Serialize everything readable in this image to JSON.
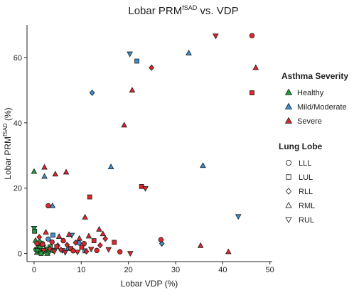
{
  "chart_data": {
    "type": "scatter",
    "title": "Lobar PRM",
    "title_super": "fSAD",
    "title_suffix": " vs. VDP",
    "xlabel": "Lobar VDP (%)",
    "ylabel": "Lobar PRM",
    "ylabel_super": "fSAD",
    "ylabel_suffix": " (%)",
    "xlim": [
      -1.5,
      50.5
    ],
    "ylim": [
      -2.5,
      70
    ],
    "xticks": [
      0,
      10,
      20,
      30,
      40,
      50
    ],
    "yticks": [
      0,
      20,
      40,
      60
    ],
    "grid": false,
    "legend_severity": {
      "title": "Asthma Severity",
      "items": [
        {
          "label": "Healthy",
          "color": "#1f9e3a"
        },
        {
          "label": "Mild/Moderate",
          "color": "#3a8fd0"
        },
        {
          "label": "Severe",
          "color": "#e0262b"
        }
      ]
    },
    "legend_lobe": {
      "title": "Lung Lobe",
      "items": [
        {
          "label": "LLL",
          "shape": "circle"
        },
        {
          "label": "LUL",
          "shape": "square"
        },
        {
          "label": "RLL",
          "shape": "diamond"
        },
        {
          "label": "RML",
          "shape": "triangle-up"
        },
        {
          "label": "RUL",
          "shape": "triangle-down"
        }
      ]
    },
    "points": [
      {
        "x": 0.0,
        "y": 25.1,
        "severity": "Healthy",
        "lobe": "RML"
      },
      {
        "x": 0.0,
        "y": 7.7,
        "severity": "Healthy",
        "lobe": "RUL"
      },
      {
        "x": 0.1,
        "y": 6.8,
        "severity": "Healthy",
        "lobe": "LUL"
      },
      {
        "x": 0.4,
        "y": 1.2,
        "severity": "Healthy",
        "lobe": "LLL"
      },
      {
        "x": 0.6,
        "y": 0.3,
        "severity": "Healthy",
        "lobe": "RML"
      },
      {
        "x": 0.9,
        "y": 2.4,
        "severity": "Healthy",
        "lobe": "RLL"
      },
      {
        "x": 1.1,
        "y": 0.6,
        "severity": "Healthy",
        "lobe": "RUL"
      },
      {
        "x": 1.3,
        "y": 1.8,
        "severity": "Healthy",
        "lobe": "LUL"
      },
      {
        "x": 1.6,
        "y": 0.2,
        "severity": "Healthy",
        "lobe": "LLL"
      },
      {
        "x": 1.9,
        "y": 3.0,
        "severity": "Healthy",
        "lobe": "RML"
      },
      {
        "x": 2.2,
        "y": 0.8,
        "severity": "Healthy",
        "lobe": "RLL"
      },
      {
        "x": 2.6,
        "y": 1.4,
        "severity": "Healthy",
        "lobe": "RUL"
      },
      {
        "x": 3.0,
        "y": 0.4,
        "severity": "Healthy",
        "lobe": "LLL"
      },
      {
        "x": 3.4,
        "y": 2.0,
        "severity": "Healthy",
        "lobe": "LUL"
      },
      {
        "x": 0.3,
        "y": 4.0,
        "severity": "Healthy",
        "lobe": "RML"
      },
      {
        "x": 1.2,
        "y": 3.6,
        "severity": "Healthy",
        "lobe": "RLL"
      },
      {
        "x": 2.8,
        "y": 0.0,
        "severity": "Healthy",
        "lobe": "RML"
      },
      {
        "x": 4.0,
        "y": 0.9,
        "severity": "Healthy",
        "lobe": "LLL"
      },
      {
        "x": 1.5,
        "y": 0.0,
        "severity": "Healthy",
        "lobe": "LUL"
      },
      {
        "x": 0.7,
        "y": 0.9,
        "severity": "Healthy",
        "lobe": "RUL"
      },
      {
        "x": 2.2,
        "y": 23.6,
        "severity": "Mild/Moderate",
        "lobe": "RML"
      },
      {
        "x": 3.9,
        "y": 14.6,
        "severity": "Mild/Moderate",
        "lobe": "RML"
      },
      {
        "x": 4.0,
        "y": 5.6,
        "severity": "Mild/Moderate",
        "lobe": "LUL"
      },
      {
        "x": 6.0,
        "y": 0.9,
        "severity": "Mild/Moderate",
        "lobe": "RUL"
      },
      {
        "x": 8.0,
        "y": 5.6,
        "severity": "Mild/Moderate",
        "lobe": "RUL"
      },
      {
        "x": 10.8,
        "y": 0.8,
        "severity": "Mild/Moderate",
        "lobe": "LUL"
      },
      {
        "x": 12.3,
        "y": 49.2,
        "severity": "Mild/Moderate",
        "lobe": "RLL"
      },
      {
        "x": 16.3,
        "y": 26.5,
        "severity": "Mild/Moderate",
        "lobe": "RML"
      },
      {
        "x": 20.3,
        "y": 61.1,
        "severity": "Mild/Moderate",
        "lobe": "RUL"
      },
      {
        "x": 21.8,
        "y": 58.9,
        "severity": "Mild/Moderate",
        "lobe": "LUL"
      },
      {
        "x": 27.1,
        "y": 3.0,
        "severity": "Mild/Moderate",
        "lobe": "RLL"
      },
      {
        "x": 32.8,
        "y": 61.4,
        "severity": "Mild/Moderate",
        "lobe": "RML"
      },
      {
        "x": 35.8,
        "y": 26.9,
        "severity": "Mild/Moderate",
        "lobe": "RML"
      },
      {
        "x": 43.3,
        "y": 11.3,
        "severity": "Mild/Moderate",
        "lobe": "RUL"
      },
      {
        "x": 3.0,
        "y": 4.4,
        "severity": "Mild/Moderate",
        "lobe": "LLL"
      },
      {
        "x": 5.0,
        "y": 2.4,
        "severity": "Mild/Moderate",
        "lobe": "RLL"
      },
      {
        "x": 7.2,
        "y": 1.6,
        "severity": "Mild/Moderate",
        "lobe": "RML"
      },
      {
        "x": 9.5,
        "y": 3.2,
        "severity": "Mild/Moderate",
        "lobe": "LLL"
      },
      {
        "x": 2.2,
        "y": 26.4,
        "severity": "Severe",
        "lobe": "RML"
      },
      {
        "x": 3.0,
        "y": 14.6,
        "severity": "Severe",
        "lobe": "LLL"
      },
      {
        "x": 4.5,
        "y": 24.3,
        "severity": "Severe",
        "lobe": "RML"
      },
      {
        "x": 6.8,
        "y": 24.9,
        "severity": "Severe",
        "lobe": "RML"
      },
      {
        "x": 11.8,
        "y": 17.3,
        "severity": "Severe",
        "lobe": "LUL"
      },
      {
        "x": 10.8,
        "y": 11.1,
        "severity": "Severe",
        "lobe": "RML"
      },
      {
        "x": 13.8,
        "y": 7.4,
        "severity": "Severe",
        "lobe": "RML"
      },
      {
        "x": 15.1,
        "y": 4.5,
        "severity": "Severe",
        "lobe": "RLL"
      },
      {
        "x": 19.1,
        "y": 39.3,
        "severity": "Severe",
        "lobe": "RML"
      },
      {
        "x": 20.8,
        "y": 50.0,
        "severity": "Severe",
        "lobe": "RML"
      },
      {
        "x": 20.4,
        "y": 0.0,
        "severity": "Severe",
        "lobe": "RUL"
      },
      {
        "x": 22.8,
        "y": 20.5,
        "severity": "Severe",
        "lobe": "LUL"
      },
      {
        "x": 23.6,
        "y": 19.9,
        "severity": "Severe",
        "lobe": "RUL"
      },
      {
        "x": 24.9,
        "y": 56.9,
        "severity": "Severe",
        "lobe": "RLL"
      },
      {
        "x": 26.9,
        "y": 4.2,
        "severity": "Severe",
        "lobe": "LLL"
      },
      {
        "x": 35.3,
        "y": 2.4,
        "severity": "Severe",
        "lobe": "RML"
      },
      {
        "x": 38.5,
        "y": 66.6,
        "severity": "Severe",
        "lobe": "RUL"
      },
      {
        "x": 41.2,
        "y": 0.5,
        "severity": "Severe",
        "lobe": "RML"
      },
      {
        "x": 46.2,
        "y": 66.7,
        "severity": "Severe",
        "lobe": "LLL"
      },
      {
        "x": 46.2,
        "y": 49.2,
        "severity": "Severe",
        "lobe": "LUL"
      },
      {
        "x": 47.0,
        "y": 56.9,
        "severity": "Severe",
        "lobe": "RML"
      },
      {
        "x": 1.8,
        "y": 2.8,
        "severity": "Severe",
        "lobe": "LUL"
      },
      {
        "x": 2.5,
        "y": 6.5,
        "severity": "Severe",
        "lobe": "RML"
      },
      {
        "x": 3.3,
        "y": 1.4,
        "severity": "Severe",
        "lobe": "RLL"
      },
      {
        "x": 3.8,
        "y": 3.5,
        "severity": "Severe",
        "lobe": "LLL"
      },
      {
        "x": 4.3,
        "y": 0.6,
        "severity": "Severe",
        "lobe": "RUL"
      },
      {
        "x": 4.8,
        "y": 2.1,
        "severity": "Severe",
        "lobe": "LUL"
      },
      {
        "x": 5.3,
        "y": 5.2,
        "severity": "Severe",
        "lobe": "RML"
      },
      {
        "x": 5.7,
        "y": 1.1,
        "severity": "Severe",
        "lobe": "RLL"
      },
      {
        "x": 6.2,
        "y": 3.9,
        "severity": "Severe",
        "lobe": "LLL"
      },
      {
        "x": 6.6,
        "y": 0.3,
        "severity": "Severe",
        "lobe": "RUL"
      },
      {
        "x": 7.0,
        "y": 2.6,
        "severity": "Severe",
        "lobe": "RLL"
      },
      {
        "x": 7.4,
        "y": 5.8,
        "severity": "Severe",
        "lobe": "RML"
      },
      {
        "x": 7.8,
        "y": 1.5,
        "severity": "Severe",
        "lobe": "LUL"
      },
      {
        "x": 8.3,
        "y": 0.8,
        "severity": "Severe",
        "lobe": "LLL"
      },
      {
        "x": 8.8,
        "y": 3.3,
        "severity": "Severe",
        "lobe": "RLL"
      },
      {
        "x": 9.2,
        "y": 0.4,
        "severity": "Severe",
        "lobe": "RUL"
      },
      {
        "x": 9.6,
        "y": 4.6,
        "severity": "Severe",
        "lobe": "RML"
      },
      {
        "x": 10.1,
        "y": 1.9,
        "severity": "Severe",
        "lobe": "LUL"
      },
      {
        "x": 10.6,
        "y": 3.0,
        "severity": "Severe",
        "lobe": "LLL"
      },
      {
        "x": 11.1,
        "y": 0.6,
        "severity": "Severe",
        "lobe": "RLL"
      },
      {
        "x": 11.6,
        "y": 5.3,
        "severity": "Severe",
        "lobe": "RML"
      },
      {
        "x": 12.1,
        "y": 1.3,
        "severity": "Severe",
        "lobe": "RUL"
      },
      {
        "x": 12.7,
        "y": 3.9,
        "severity": "Severe",
        "lobe": "LUL"
      },
      {
        "x": 13.3,
        "y": 0.9,
        "severity": "Severe",
        "lobe": "LLL"
      },
      {
        "x": 14.0,
        "y": 2.5,
        "severity": "Severe",
        "lobe": "RLL"
      },
      {
        "x": 14.6,
        "y": 6.0,
        "severity": "Severe",
        "lobe": "RML"
      },
      {
        "x": 15.8,
        "y": 1.2,
        "severity": "Severe",
        "lobe": "RUL"
      },
      {
        "x": 17.0,
        "y": 3.4,
        "severity": "Severe",
        "lobe": "LUL"
      },
      {
        "x": 18.2,
        "y": 0.5,
        "severity": "Severe",
        "lobe": "LLL"
      },
      {
        "x": 0.6,
        "y": 3.1,
        "severity": "Severe",
        "lobe": "LLL"
      },
      {
        "x": 1.1,
        "y": 5.0,
        "severity": "Severe",
        "lobe": "RLL"
      },
      {
        "x": 2.0,
        "y": 0.9,
        "severity": "Severe",
        "lobe": "RUL"
      }
    ]
  }
}
